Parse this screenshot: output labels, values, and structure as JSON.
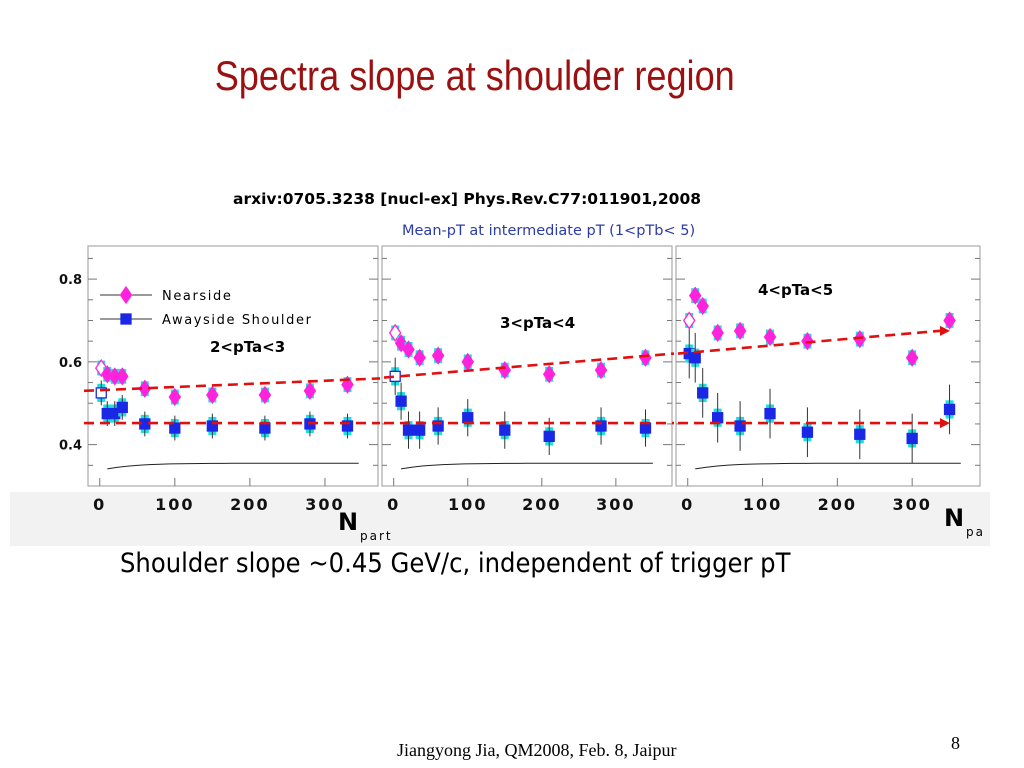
{
  "slide": {
    "title": "Spectra slope at shoulder region",
    "reference": "arxiv:0705.3238 [nucl-ex] Phys.Rev.C77:011901,2008",
    "subtitle": "Mean-pT at intermediate pT (1<pTb< 5)",
    "note": "Shoulder slope ~0.45 GeV/c, independent of trigger pT",
    "footer": "Jiangyong Jia, QM2008, Feb. 8, Jaipur",
    "page_number": "8"
  },
  "colors": {
    "title": "#9b1010",
    "subtitle": "#2b3ca8",
    "nearside": "#ff22dd",
    "awayside": "#1a28e6",
    "error_band": "#22dde0",
    "trend_line": "#e01010"
  },
  "chart_data": {
    "type": "scatter",
    "ylim": [
      0.3,
      0.88
    ],
    "yticks": [
      0.4,
      0.6,
      0.8
    ],
    "xticks": [
      0,
      100,
      200,
      300
    ],
    "x_axis_label": "N",
    "x_axis_subscript": "part",
    "legend": {
      "placement": "top-left",
      "entries": [
        "Nearside",
        "Awayside Shoulder"
      ]
    },
    "panels": [
      {
        "label": "2<pTa<3",
        "xlim": [
          -5,
          360
        ],
        "nearside": {
          "x": [
            2,
            10,
            20,
            30,
            60,
            100,
            150,
            220,
            280,
            330
          ],
          "y": [
            0.585,
            0.57,
            0.565,
            0.565,
            0.535,
            0.515,
            0.52,
            0.52,
            0.53,
            0.545
          ],
          "open_first": true
        },
        "awayside": {
          "x": [
            2,
            10,
            20,
            30,
            60,
            100,
            150,
            220,
            280,
            330
          ],
          "y": [
            0.525,
            0.475,
            0.475,
            0.49,
            0.45,
            0.44,
            0.445,
            0.44,
            0.45,
            0.445
          ],
          "open_first": true
        },
        "trend_lines": [
          [
            0.53,
            0.56
          ],
          [
            0.452,
            0.452
          ]
        ]
      },
      {
        "label": "3<pTa<4",
        "xlim": [
          -5,
          365
        ],
        "nearside": {
          "x": [
            2,
            10,
            20,
            35,
            60,
            100,
            150,
            210,
            280,
            340
          ],
          "y": [
            0.67,
            0.645,
            0.63,
            0.61,
            0.615,
            0.6,
            0.58,
            0.57,
            0.58,
            0.61
          ],
          "open_first": true
        },
        "awayside": {
          "x": [
            2,
            10,
            20,
            35,
            60,
            100,
            150,
            210,
            280,
            340
          ],
          "y": [
            0.565,
            0.505,
            0.435,
            0.435,
            0.445,
            0.465,
            0.435,
            0.42,
            0.445,
            0.44
          ],
          "open_first": true
        },
        "trend_lines": [
          [
            0.562,
            0.62
          ],
          [
            0.452,
            0.452
          ]
        ]
      },
      {
        "label": "4<pTa<5",
        "xlim": [
          -5,
          380
        ],
        "nearside": {
          "x": [
            2,
            10,
            20,
            40,
            70,
            110,
            160,
            230,
            300,
            350
          ],
          "y": [
            0.7,
            0.76,
            0.735,
            0.67,
            0.675,
            0.66,
            0.65,
            0.655,
            0.61,
            0.7
          ],
          "open_first": true
        },
        "awayside": {
          "x": [
            2,
            10,
            20,
            40,
            70,
            110,
            160,
            230,
            300,
            350
          ],
          "y": [
            0.62,
            0.61,
            0.525,
            0.465,
            0.445,
            0.475,
            0.43,
            0.425,
            0.415,
            0.485
          ],
          "open_first": false
        },
        "trend_lines": [
          [
            0.62,
            0.675
          ],
          [
            0.452,
            0.452
          ]
        ]
      }
    ]
  }
}
